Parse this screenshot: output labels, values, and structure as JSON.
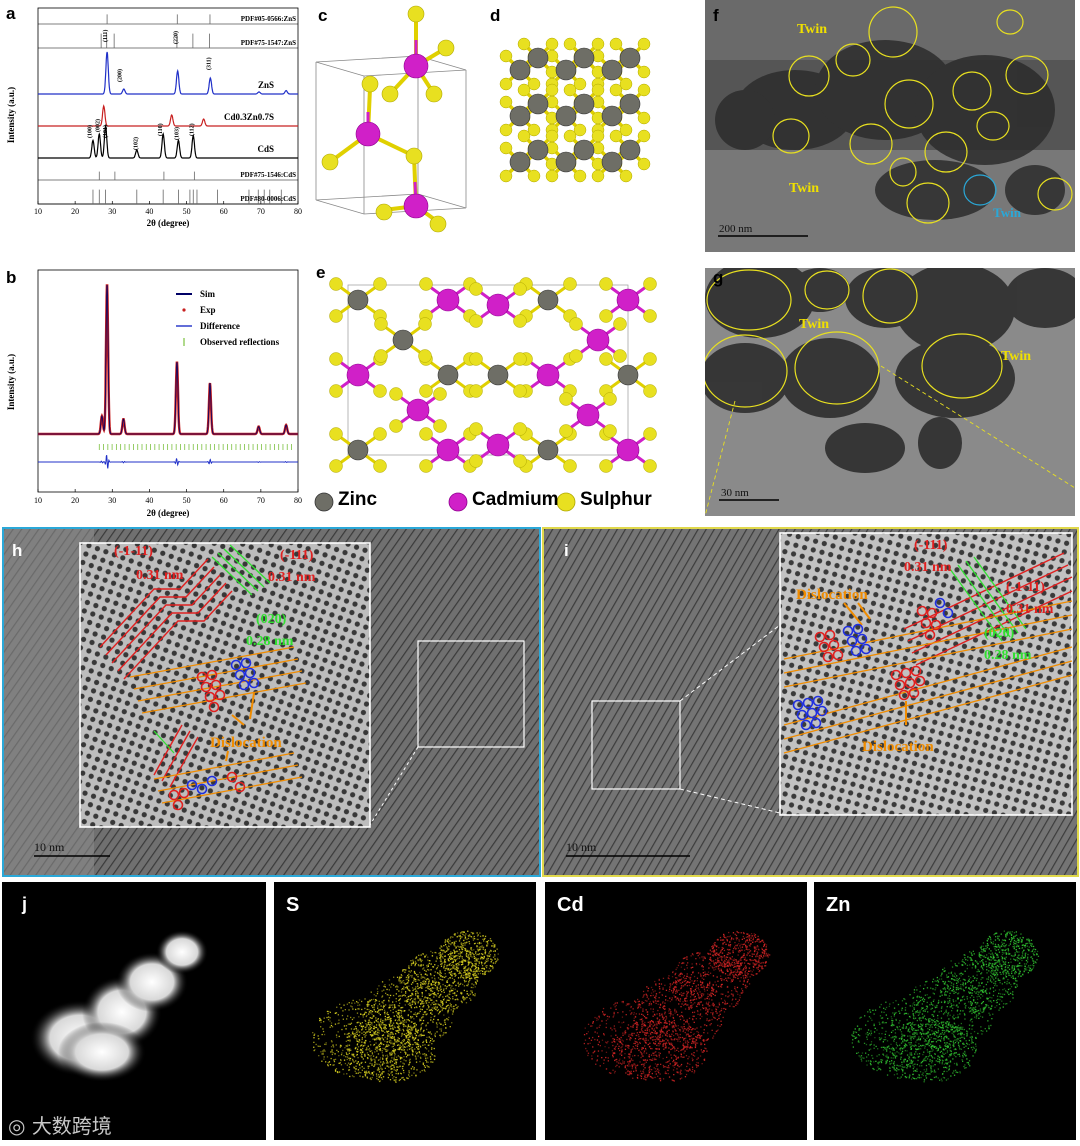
{
  "panels": {
    "a": "a",
    "b": "b",
    "c": "c",
    "d": "d",
    "e": "e",
    "f": "f",
    "g": "g",
    "h": "h",
    "i": "i",
    "j": "j"
  },
  "chart_data": [
    {
      "type": "line",
      "panel": "a",
      "xlabel": "2θ (degree)",
      "ylabel": "Intensity (a.u.)",
      "xlim": [
        10,
        80
      ],
      "xticks": [
        10,
        20,
        30,
        40,
        50,
        60,
        70,
        80
      ],
      "series": [
        {
          "name": "ZnS",
          "color": "#2030c8",
          "peaks": [
            [
              28.6,
              1.0
            ],
            [
              33.1,
              0.12
            ],
            [
              47.6,
              0.55
            ],
            [
              56.4,
              0.38
            ],
            [
              69.5,
              0.05
            ],
            [
              76.8,
              0.08
            ]
          ]
        },
        {
          "name": "Cd0.3Zn0.7S",
          "color": "#c82020",
          "peaks": [
            [
              27.7,
              1.0
            ],
            [
              46.0,
              0.55
            ],
            [
              54.6,
              0.35
            ]
          ]
        },
        {
          "name": "CdS",
          "color": "#000000",
          "peaks": [
            [
              24.8,
              0.55
            ],
            [
              26.5,
              0.75
            ],
            [
              28.2,
              1.0
            ],
            [
              36.6,
              0.25
            ],
            [
              43.7,
              0.75
            ],
            [
              47.8,
              0.55
            ],
            [
              51.8,
              0.7
            ]
          ]
        }
      ],
      "peak_labels": {
        "ZnS": [
          "(111)",
          "(200)",
          "(220)",
          "(311)"
        ],
        "CdS": [
          "(100)",
          "(002)",
          "(101)",
          "(102)",
          "(110)",
          "(103)",
          "(112)"
        ]
      },
      "reference_patterns": [
        {
          "name": "PDF#05-0566:ZnS",
          "positions": [
            28.6,
            47.5,
            56.3
          ]
        },
        {
          "name": "PDF#75-1547:ZnS",
          "positions": [
            27.0,
            28.5,
            30.5,
            47.4,
            51.7,
            56.2
          ]
        },
        {
          "name": "PDF#75-1546:CdS",
          "positions": [
            26.5,
            30.7,
            43.9,
            52.1
          ]
        },
        {
          "name": "PDF#80-0006:CdS",
          "positions": [
            24.8,
            26.5,
            28.2,
            36.6,
            43.7,
            47.8,
            50.9,
            51.8,
            52.8,
            58.3,
            66.8,
            69.3,
            70.9,
            72.4,
            75.5
          ]
        }
      ]
    },
    {
      "type": "line",
      "panel": "b",
      "xlabel": "2θ (degree)",
      "ylabel": "Intensity (a.u.)",
      "xlim": [
        10,
        80
      ],
      "xticks": [
        10,
        20,
        30,
        40,
        50,
        60,
        70,
        80
      ],
      "legend": [
        "Sim",
        "Exp",
        "Difference",
        "Observed reflections"
      ],
      "legend_position": "top-right",
      "peaks": [
        [
          27.2,
          0.12
        ],
        [
          28.6,
          1.0
        ],
        [
          33.0,
          0.1
        ],
        [
          47.4,
          0.48
        ],
        [
          56.3,
          0.34
        ],
        [
          69.4,
          0.05
        ],
        [
          76.8,
          0.06
        ]
      ]
    }
  ],
  "structure_legend": {
    "zinc": "Zinc",
    "cadmium": "Cadmium",
    "sulphur": "Sulphur"
  },
  "tem": {
    "twin": "Twin",
    "scale_f": "200 nm",
    "scale_g": "30 nm",
    "scale_h": "10 nm",
    "scale_i": "10 nm"
  },
  "hrtem_h": {
    "plane1": "(-1-11)",
    "d1": "0.31 nm",
    "plane2": "(-111)",
    "d2": "0.31 nm",
    "plane3": "(020)",
    "d3": "0.28 nm",
    "dislocation": "Dislocation"
  },
  "hrtem_i": {
    "plane1": "(-111)",
    "d1": "0.31 nm",
    "plane2": "(-1-11)",
    "d2": "0.31 nm",
    "plane3": "(020)",
    "d3": "0.28 nm",
    "dislocation": "Dislocation"
  },
  "eds": {
    "s": "S",
    "cd": "Cd",
    "zn": "Zn"
  },
  "watermark": "大数跨境",
  "colors": {
    "zns": "#2030c8",
    "alloy": "#c82020",
    "cds": "#000000",
    "zinc_atom": "#6e6e66",
    "cadmium_atom": "#d020c8",
    "sulphur_atom": "#e8e020",
    "annotation_red": "#e02020",
    "annotation_green": "#30e030",
    "annotation_orange": "#f08c00",
    "twin_label": "#f0e000",
    "twin_label_alt": "#2aa8d8",
    "frame_h": "#2aa8d8",
    "frame_i": "#e0d84a"
  }
}
